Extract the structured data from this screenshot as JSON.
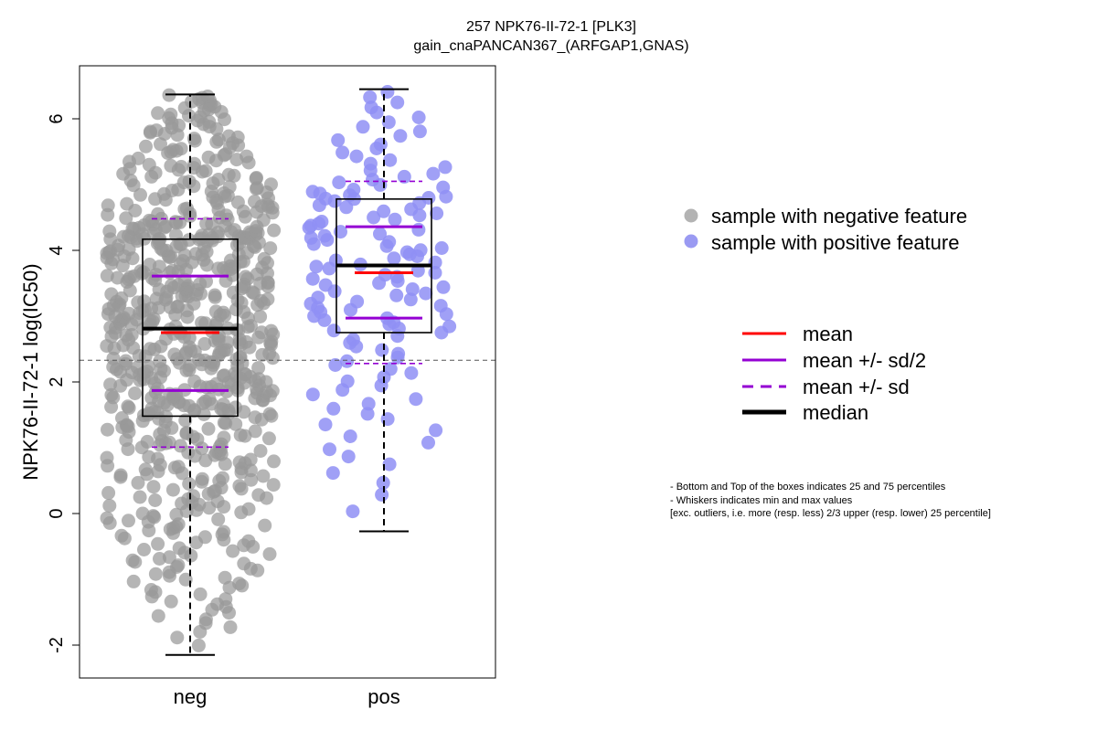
{
  "chart_data": {
    "type": "box-swarm",
    "title_line1": "257 NPK76-II-72-1 [PLK3]",
    "title_line2": "gain_cnaPANCAN367_(ARFGAP1,GNAS)",
    "ylabel": "NPK76-II-72-1 log(IC50)",
    "xlabel": "",
    "categories": [
      "neg",
      "pos"
    ],
    "ylim": [
      -2.5,
      6.8
    ],
    "yticks": [
      -2,
      0,
      2,
      4,
      6
    ],
    "ytick_labels": [
      "-2",
      "0",
      "2",
      "4",
      "6"
    ],
    "reference_line": 2.33,
    "groups": [
      {
        "name": "neg",
        "color": "#999999",
        "n_points": 700,
        "min": -2.15,
        "q1": 1.48,
        "median": 2.81,
        "q3": 4.17,
        "max": 6.37,
        "mean": 2.75,
        "mean_minus_half_sd": 1.87,
        "mean_plus_half_sd": 3.61,
        "mean_minus_sd": 1.01,
        "mean_plus_sd": 4.48
      },
      {
        "name": "pos",
        "color": "#8F8FF5",
        "n_points": 130,
        "min": -0.27,
        "q1": 2.75,
        "median": 3.77,
        "q3": 4.78,
        "max": 6.45,
        "mean": 3.66,
        "mean_minus_half_sd": 2.97,
        "mean_plus_half_sd": 4.36,
        "mean_minus_sd": 2.28,
        "mean_plus_sd": 5.05
      }
    ],
    "legend_points": [
      {
        "label": "sample with negative feature",
        "color": "#B3B3B3"
      },
      {
        "label": "sample with positive feature",
        "color": "#9A9AF2"
      }
    ],
    "legend_lines": [
      {
        "label": "mean",
        "color": "#FF0000",
        "style": "solid"
      },
      {
        "label": "mean +/- sd/2",
        "color": "#9400D3",
        "style": "solid"
      },
      {
        "label": "mean +/- sd",
        "color": "#9400D3",
        "style": "dashed"
      },
      {
        "label": "median",
        "color": "#000000",
        "style": "solid-thick"
      }
    ],
    "notes": [
      "- Bottom and Top of the boxes indicates 25 and 75 percentiles",
      "- Whiskers indicates min and max values",
      "[exc. outliers, i.e. more (resp. less) 2/3 upper (resp. lower) 25 percentile]"
    ]
  }
}
